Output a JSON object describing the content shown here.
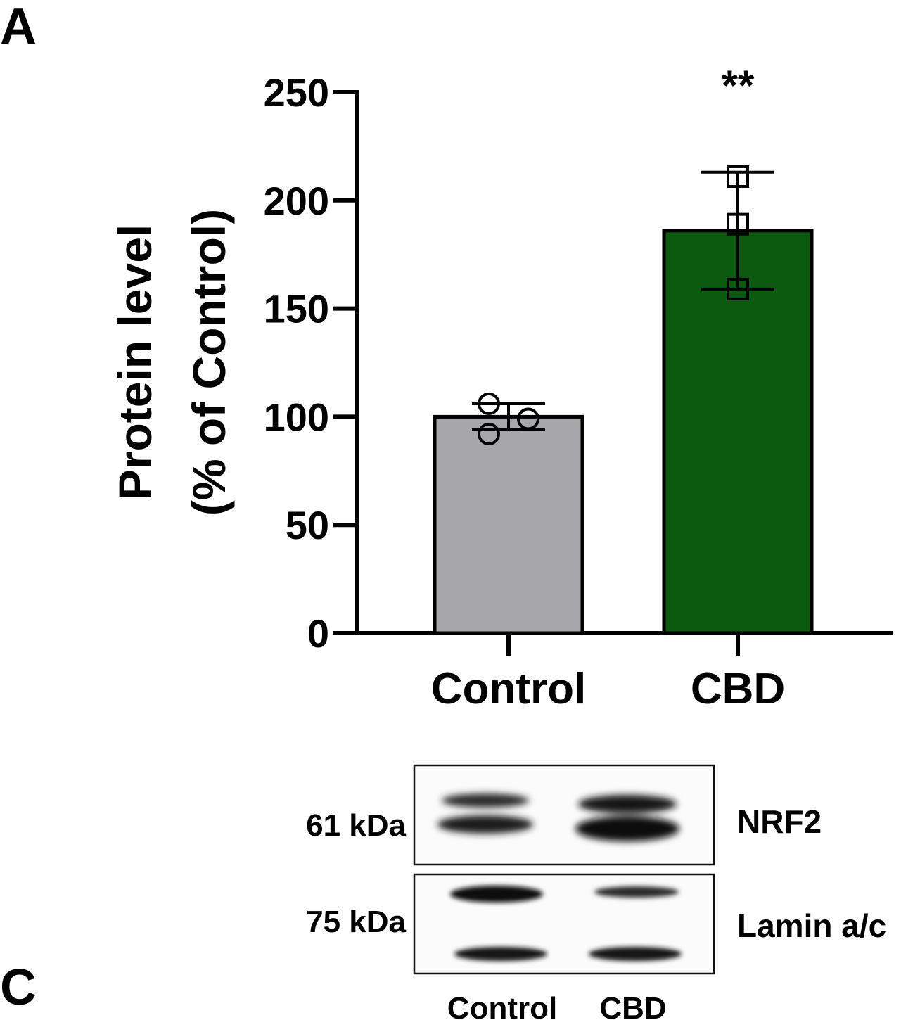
{
  "panels": {
    "a_label": "A",
    "c_label": "C"
  },
  "chart_data": {
    "type": "bar",
    "categories": [
      "Control",
      "CBD"
    ],
    "values": [
      100,
      186
    ],
    "error": [
      6,
      27
    ],
    "points": [
      [
        106,
        99,
        92
      ],
      [
        211,
        189,
        159
      ]
    ],
    "markers": [
      "circle",
      "square"
    ],
    "colors": [
      "#a7a6ab",
      "#0b5a10"
    ],
    "significance": [
      "",
      "**"
    ],
    "ylabel_line1": "Protein level",
    "ylabel_line2": "(% of Control)",
    "ylim": [
      0,
      250
    ],
    "yticks": [
      0,
      50,
      100,
      150,
      200,
      250
    ],
    "grid": false
  },
  "western_blot": {
    "bands": [
      {
        "marker": "61 kDa",
        "protein": "NRF2"
      },
      {
        "marker": "75 kDa",
        "protein": "Lamin a/c"
      }
    ],
    "lanes": [
      "Control",
      "CBD"
    ]
  }
}
